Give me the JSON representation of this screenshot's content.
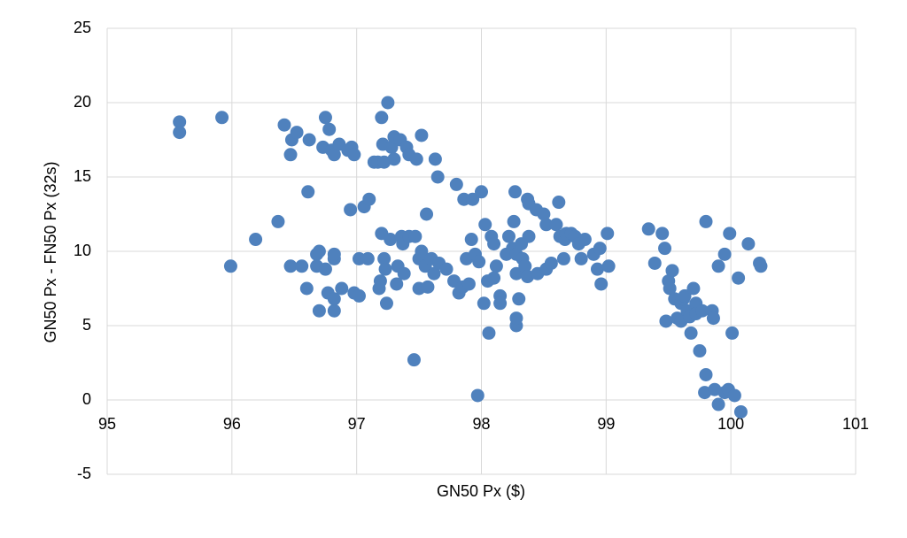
{
  "chart_data": {
    "type": "scatter",
    "x_label": "GN50 Px ($)",
    "y_label": "GN50 Px - FN50 Px (32s)",
    "color": "#4f81bd",
    "grid": true,
    "xlim": [
      95,
      101
    ],
    "xticks": [
      95,
      96,
      97,
      98,
      99,
      100,
      101
    ],
    "ylim": [
      -5,
      25
    ],
    "yticks": [
      -5,
      0,
      5,
      10,
      15,
      20,
      25
    ],
    "x": [
      95.58,
      95.58,
      95.92,
      95.99,
      96.19,
      96.37,
      96.42,
      96.47,
      96.48,
      96.52,
      96.47,
      96.56,
      96.6,
      96.61,
      96.62,
      96.68,
      96.7,
      96.68,
      96.7,
      96.73,
      96.75,
      96.77,
      96.75,
      96.78,
      96.8,
      96.82,
      96.82,
      96.82,
      96.82,
      96.82,
      96.86,
      96.88,
      96.93,
      96.95,
      96.96,
      96.98,
      96.98,
      97.02,
      97.02,
      97.06,
      97.09,
      97.1,
      97.14,
      97.17,
      97.18,
      97.19,
      97.2,
      97.2,
      97.21,
      97.22,
      97.22,
      97.23,
      97.24,
      97.25,
      97.27,
      97.28,
      97.3,
      97.3,
      97.32,
      97.33,
      97.35,
      97.36,
      97.37,
      97.38,
      97.4,
      97.42,
      97.42,
      97.46,
      97.47,
      97.48,
      97.5,
      97.5,
      97.52,
      97.52,
      97.55,
      97.56,
      97.57,
      97.6,
      97.63,
      97.65,
      97.62,
      97.66,
      97.72,
      97.78,
      97.8,
      97.82,
      97.85,
      97.86,
      97.88,
      97.9,
      97.92,
      97.93,
      97.95,
      97.98,
      97.97,
      98.0,
      98.02,
      98.03,
      98.05,
      98.06,
      98.08,
      98.1,
      98.1,
      98.12,
      98.15,
      98.15,
      98.2,
      98.22,
      98.25,
      98.26,
      98.27,
      98.28,
      98.28,
      98.28,
      98.28,
      98.3,
      98.32,
      98.33,
      98.35,
      98.37,
      98.38,
      98.38,
      98.37,
      98.44,
      98.45,
      98.5,
      98.52,
      98.52,
      98.56,
      98.6,
      98.62,
      98.63,
      98.66,
      98.67,
      98.68,
      98.72,
      98.75,
      98.78,
      98.8,
      98.83,
      98.9,
      98.93,
      98.95,
      98.96,
      99.01,
      99.02,
      99.34,
      99.39,
      99.45,
      99.47,
      99.48,
      99.5,
      99.51,
      99.53,
      99.55,
      99.57,
      99.6,
      99.6,
      99.62,
      99.63,
      99.65,
      99.67,
      99.68,
      99.7,
      99.72,
      99.72,
      99.75,
      99.77,
      99.79,
      99.8,
      99.8,
      99.85,
      99.86,
      99.87,
      99.9,
      99.9,
      99.95,
      99.95,
      99.98,
      99.99,
      100.01,
      100.03,
      100.06,
      100.08,
      100.14,
      100.23,
      100.24
    ],
    "values": [
      18.7,
      18.0,
      19.0,
      9.0,
      10.8,
      12.0,
      18.5,
      16.5,
      17.5,
      18.0,
      9.0,
      9.0,
      7.5,
      14.0,
      17.5,
      9.8,
      10.0,
      9.0,
      6.0,
      17.0,
      19.0,
      7.2,
      8.8,
      18.2,
      16.8,
      16.5,
      9.5,
      9.8,
      6.0,
      6.8,
      17.2,
      7.5,
      16.8,
      12.8,
      17.0,
      16.5,
      7.2,
      7.0,
      9.5,
      13.0,
      9.5,
      13.5,
      16.0,
      16.0,
      7.5,
      8.0,
      11.2,
      19.0,
      17.2,
      16.0,
      9.5,
      8.8,
      6.5,
      20.0,
      10.8,
      17.0,
      17.7,
      16.2,
      7.8,
      9.0,
      17.5,
      11.0,
      10.5,
      8.5,
      17.0,
      11.0,
      16.5,
      2.7,
      11.0,
      16.2,
      9.5,
      7.5,
      10.0,
      17.8,
      9.0,
      12.5,
      7.6,
      9.5,
      16.2,
      15.0,
      8.5,
      9.2,
      8.8,
      8.0,
      14.5,
      7.2,
      7.6,
      13.5,
      9.5,
      7.8,
      10.8,
      13.5,
      9.8,
      9.3,
      0.3,
      14.0,
      6.5,
      11.8,
      8.0,
      4.5,
      11.0,
      8.2,
      10.5,
      9.0,
      7.0,
      6.5,
      9.8,
      11.0,
      10.2,
      12.0,
      14.0,
      9.8,
      8.5,
      5.0,
      5.5,
      6.8,
      10.5,
      9.5,
      9.0,
      13.5,
      11.0,
      13.2,
      8.3,
      12.8,
      8.5,
      12.5,
      11.8,
      8.8,
      9.2,
      11.8,
      13.3,
      11.0,
      9.5,
      10.8,
      11.2,
      11.2,
      11.0,
      10.5,
      9.5,
      10.8,
      9.8,
      8.8,
      10.2,
      7.8,
      11.2,
      9.0,
      11.5,
      9.2,
      11.2,
      10.2,
      5.3,
      8.0,
      7.5,
      8.7,
      6.8,
      5.5,
      6.5,
      5.3,
      6.8,
      7.0,
      6.0,
      5.6,
      4.5,
      7.5,
      6.5,
      5.8,
      3.3,
      6.0,
      0.5,
      1.7,
      12.0,
      6.0,
      5.5,
      0.7,
      9.0,
      -0.3,
      9.8,
      0.5,
      0.7,
      11.2,
      4.5,
      0.3,
      8.2,
      -0.8,
      10.5,
      9.2,
      9.0
    ]
  }
}
